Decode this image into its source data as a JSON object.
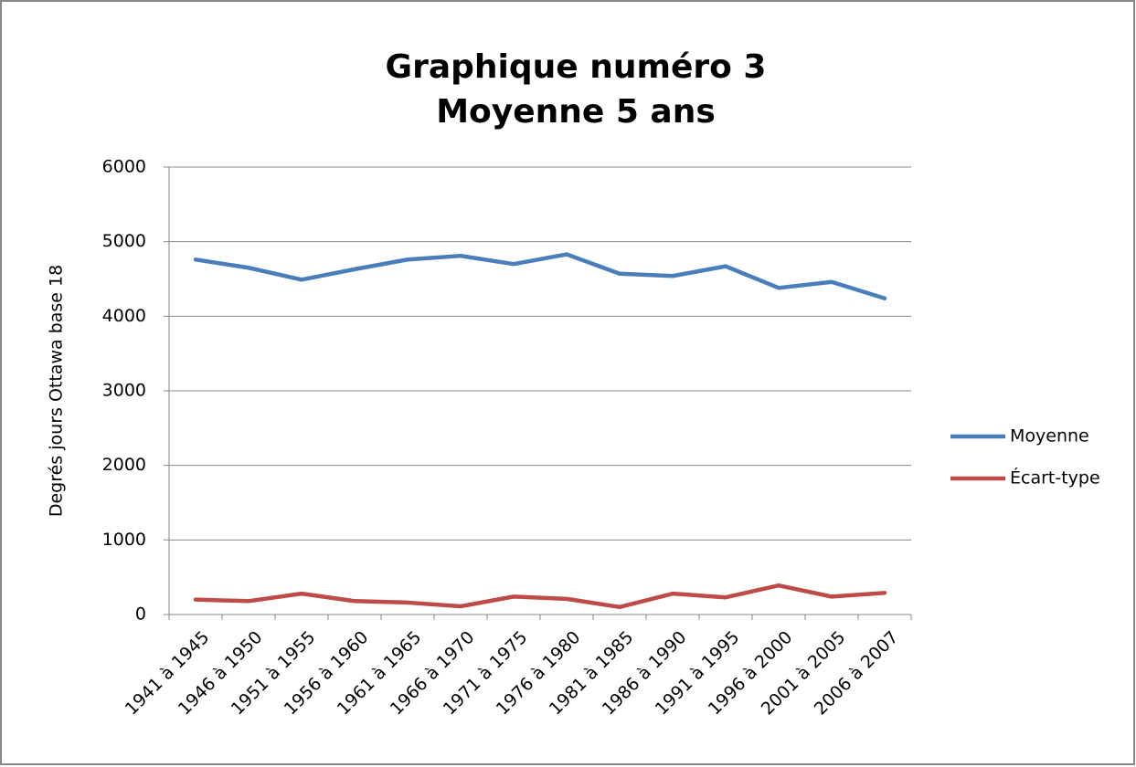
{
  "chart_data": {
    "type": "line",
    "title": [
      "Graphique numéro 3",
      "Moyenne 5 ans"
    ],
    "y_label": "Degrés jours Ottawa base 18",
    "categories": [
      "1941 à 1945",
      "1946 à 1950",
      "1951 à 1955",
      "1956 à 1960",
      "1961 à 1965",
      "1966 à 1970",
      "1971 à 1975",
      "1976 à 1980",
      "1981 à 1985",
      "1986 à 1990",
      "1991 à 1995",
      "1996 à 2000",
      "2001 à 2005",
      "2006 à 2007"
    ],
    "series": [
      {
        "name": "Moyenne",
        "color": "#4a7ebb",
        "values": [
          4760,
          4650,
          4490,
          4630,
          4760,
          4810,
          4700,
          4830,
          4570,
          4540,
          4670,
          4380,
          4460,
          4240
        ]
      },
      {
        "name": "Écart-type",
        "color": "#be4b48",
        "values": [
          200,
          180,
          280,
          180,
          160,
          110,
          240,
          210,
          100,
          280,
          230,
          390,
          240,
          290
        ]
      }
    ],
    "ylim": [
      0,
      6000
    ],
    "yticks": [
      0,
      1000,
      2000,
      3000,
      4000,
      5000,
      6000
    ],
    "grid": true,
    "legend": "right"
  }
}
